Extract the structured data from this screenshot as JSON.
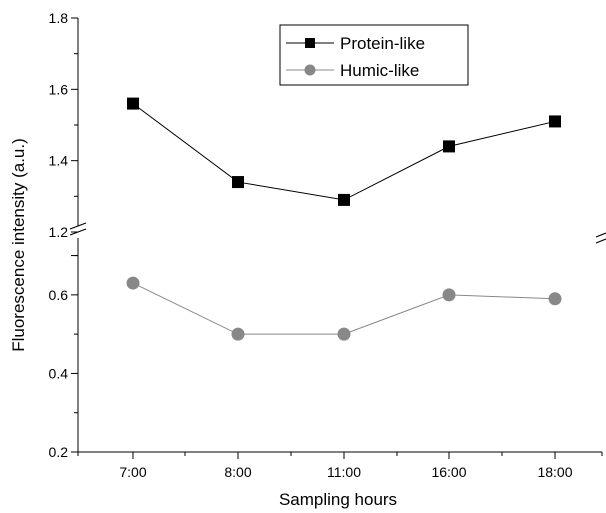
{
  "chart_data": {
    "type": "line",
    "xlabel": "Sampling hours",
    "ylabel": "Fluorescence intensity (a.u.)",
    "categories": [
      "7:00",
      "8:00",
      "11:00",
      "16:00",
      "18:00"
    ],
    "y_axis_break": [
      0.76,
      1.2
    ],
    "y_ticks_lower": [
      "0.2",
      "0.4",
      "0.6"
    ],
    "y_ticks_upper": [
      "1.2",
      "1.4",
      "1.6",
      "1.8"
    ],
    "ylim_lower": [
      0.2,
      0.76
    ],
    "ylim_upper": [
      1.2,
      1.8
    ],
    "legend_position": "top-center",
    "series": [
      {
        "name": "Protein-like",
        "values": [
          1.56,
          1.34,
          1.29,
          1.44,
          1.51
        ],
        "marker": "square",
        "color": "#000000",
        "line_color": "#000000"
      },
      {
        "name": "Humic-like",
        "values": [
          0.63,
          0.5,
          0.5,
          0.6,
          0.59
        ],
        "marker": "circle",
        "color": "#888888",
        "line_color": "#888888"
      }
    ]
  }
}
